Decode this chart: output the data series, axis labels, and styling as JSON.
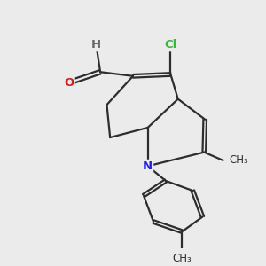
{
  "bg_color": "#ebebeb",
  "bond_color": "#2d2d2d",
  "bond_width": 1.6,
  "dbo": 0.07,
  "atom_labels": {
    "Cl": {
      "color": "#3db53d",
      "fontsize": 9.5
    },
    "N": {
      "color": "#2222dd",
      "fontsize": 9.5
    },
    "O": {
      "color": "#cc2222",
      "fontsize": 9.5
    },
    "H": {
      "color": "#666666",
      "fontsize": 9.5
    },
    "me_top": {
      "color": "#2d2d2d",
      "fontsize": 8.5
    },
    "me_bot": {
      "color": "#2d2d2d",
      "fontsize": 8.5
    }
  },
  "figsize": [
    3.0,
    3.0
  ],
  "dpi": 100
}
